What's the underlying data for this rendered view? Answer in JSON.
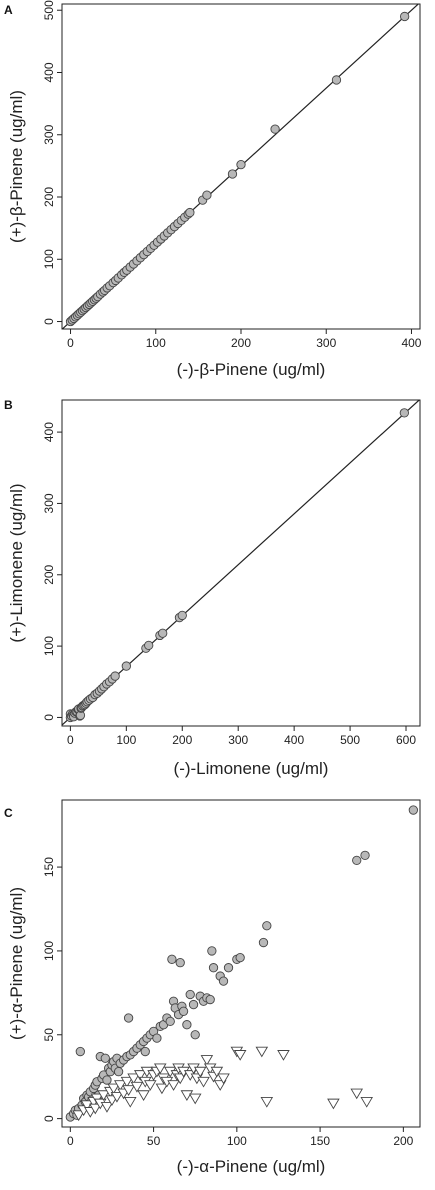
{
  "chart_data": [
    {
      "panel": "A",
      "type": "scatter",
      "xlabel": "(-)-β-Pinene (ug/ml)",
      "ylabel": "(+)-β-Pinene (ug/ml)",
      "xlim": [
        -10,
        410
      ],
      "ylim": [
        -12,
        510
      ],
      "xticks": [
        0,
        100,
        200,
        300,
        400
      ],
      "yticks": [
        0,
        100,
        200,
        300,
        400,
        500
      ],
      "reference_line": {
        "x": [
          -10,
          410
        ],
        "y": [
          -12.5,
          512.5
        ]
      },
      "series": [
        {
          "marker": "circle",
          "color": "#b8b8b8",
          "points": [
            [
              0,
              0
            ],
            [
              2,
              2.5
            ],
            [
              4,
              5
            ],
            [
              6,
              7.5
            ],
            [
              8,
              10
            ],
            [
              10,
              12.5
            ],
            [
              12,
              15
            ],
            [
              14,
              17.5
            ],
            [
              16,
              20
            ],
            [
              18,
              22.5
            ],
            [
              20,
              25
            ],
            [
              22,
              27.5
            ],
            [
              24,
              30
            ],
            [
              26,
              32.5
            ],
            [
              28,
              35
            ],
            [
              30,
              37.5
            ],
            [
              32,
              40
            ],
            [
              35,
              44
            ],
            [
              38,
              47.5
            ],
            [
              40,
              50
            ],
            [
              43,
              54
            ],
            [
              46,
              57.5
            ],
            [
              50,
              62.5
            ],
            [
              53,
              66
            ],
            [
              56,
              70
            ],
            [
              60,
              75
            ],
            [
              63,
              79
            ],
            [
              66,
              82.5
            ],
            [
              70,
              87.5
            ],
            [
              74,
              92.5
            ],
            [
              78,
              97.5
            ],
            [
              82,
              102.5
            ],
            [
              86,
              107.5
            ],
            [
              90,
              112.5
            ],
            [
              94,
              117.5
            ],
            [
              98,
              122.5
            ],
            [
              102,
              127.5
            ],
            [
              106,
              132.5
            ],
            [
              110,
              137.5
            ],
            [
              114,
              142.5
            ],
            [
              118,
              147.5
            ],
            [
              122,
              152.5
            ],
            [
              126,
              157.5
            ],
            [
              130,
              162.5
            ],
            [
              134,
              167.5
            ],
            [
              138,
              172.5
            ],
            [
              140,
              175
            ],
            [
              155,
              195
            ],
            [
              160,
              203
            ],
            [
              190,
              237
            ],
            [
              200,
              252
            ],
            [
              240,
              309
            ],
            [
              312,
              388
            ],
            [
              392,
              490
            ]
          ]
        }
      ]
    },
    {
      "panel": "B",
      "type": "scatter",
      "xlabel": "(-)-Limonene (ug/ml)",
      "ylabel": "(+)-Limonene (ug/ml)",
      "xlim": [
        -15,
        625
      ],
      "ylim": [
        -12,
        445
      ],
      "xticks": [
        0,
        100,
        200,
        300,
        400,
        500,
        600
      ],
      "yticks": [
        0,
        100,
        200,
        300,
        400
      ],
      "reference_line": {
        "x": [
          -15,
          625
        ],
        "y": [
          -10.7,
          446
        ]
      },
      "series": [
        {
          "marker": "circle",
          "color": "#b8b8b8",
          "points": [
            [
              0,
              0
            ],
            [
              0,
              5
            ],
            [
              2,
              2
            ],
            [
              4,
              5
            ],
            [
              5,
              3
            ],
            [
              6,
              1
            ],
            [
              8,
              6
            ],
            [
              10,
              8
            ],
            [
              12,
              8
            ],
            [
              14,
              11
            ],
            [
              15,
              12
            ],
            [
              17,
              2
            ],
            [
              18,
              3
            ],
            [
              19,
              13
            ],
            [
              20,
              14
            ],
            [
              22,
              16
            ],
            [
              24,
              17
            ],
            [
              26,
              18
            ],
            [
              28,
              20
            ],
            [
              30,
              22
            ],
            [
              33,
              24
            ],
            [
              36,
              26
            ],
            [
              40,
              28
            ],
            [
              44,
              32
            ],
            [
              48,
              34
            ],
            [
              52,
              37
            ],
            [
              56,
              40
            ],
            [
              60,
              43
            ],
            [
              65,
              47
            ],
            [
              70,
              50
            ],
            [
              75,
              54
            ],
            [
              80,
              58
            ],
            [
              100,
              72
            ],
            [
              135,
              97
            ],
            [
              140,
              101
            ],
            [
              160,
              115
            ],
            [
              165,
              118
            ],
            [
              195,
              140
            ],
            [
              200,
              143
            ],
            [
              597,
              427
            ]
          ]
        }
      ]
    },
    {
      "panel": "C",
      "type": "scatter",
      "xlabel": "(-)-α-Pinene (ug/ml)",
      "ylabel": "(+)-α-Pinene (ug/ml)",
      "xlim": [
        -5,
        210
      ],
      "ylim": [
        -5,
        190
      ],
      "xticks": [
        0,
        50,
        100,
        150,
        200
      ],
      "yticks": [
        0,
        50,
        100,
        150
      ],
      "series": [
        {
          "marker": "circle",
          "color": "#b8b8b8",
          "points": [
            [
              0,
              1
            ],
            [
              2,
              3
            ],
            [
              3,
              5
            ],
            [
              4,
              2
            ],
            [
              5,
              6
            ],
            [
              6,
              40
            ],
            [
              7,
              8
            ],
            [
              8,
              12
            ],
            [
              9,
              10
            ],
            [
              10,
              14
            ],
            [
              11,
              13
            ],
            [
              12,
              16
            ],
            [
              13,
              11
            ],
            [
              14,
              18
            ],
            [
              15,
              20
            ],
            [
              16,
              22
            ],
            [
              17,
              14
            ],
            [
              18,
              37
            ],
            [
              19,
              24
            ],
            [
              20,
              26
            ],
            [
              21,
              36
            ],
            [
              22,
              23
            ],
            [
              23,
              30
            ],
            [
              24,
              28
            ],
            [
              25,
              32
            ],
            [
              26,
              34
            ],
            [
              27,
              30
            ],
            [
              28,
              36
            ],
            [
              29,
              28
            ],
            [
              30,
              33
            ],
            [
              32,
              35
            ],
            [
              34,
              37
            ],
            [
              35,
              60
            ],
            [
              36,
              38
            ],
            [
              38,
              40
            ],
            [
              40,
              42
            ],
            [
              42,
              44
            ],
            [
              44,
              46
            ],
            [
              45,
              40
            ],
            [
              46,
              48
            ],
            [
              48,
              50
            ],
            [
              50,
              52
            ],
            [
              52,
              48
            ],
            [
              54,
              55
            ],
            [
              56,
              56
            ],
            [
              58,
              60
            ],
            [
              60,
              58
            ],
            [
              61,
              95
            ],
            [
              62,
              70
            ],
            [
              63,
              66
            ],
            [
              65,
              62
            ],
            [
              66,
              93
            ],
            [
              67,
              67
            ],
            [
              68,
              64
            ],
            [
              70,
              56
            ],
            [
              72,
              74
            ],
            [
              74,
              68
            ],
            [
              75,
              50
            ],
            [
              78,
              73
            ],
            [
              80,
              70
            ],
            [
              82,
              72
            ],
            [
              84,
              71
            ],
            [
              85,
              100
            ],
            [
              86,
              90
            ],
            [
              90,
              85
            ],
            [
              92,
              82
            ],
            [
              95,
              90
            ],
            [
              100,
              95
            ],
            [
              102,
              96
            ],
            [
              116,
              105
            ],
            [
              118,
              115
            ],
            [
              172,
              154
            ],
            [
              177,
              157
            ],
            [
              206,
              184
            ]
          ]
        },
        {
          "marker": "triangle-down",
          "color": "#ffffff",
          "points": [
            [
              5,
              2
            ],
            [
              8,
              5
            ],
            [
              10,
              8
            ],
            [
              12,
              4
            ],
            [
              14,
              10
            ],
            [
              15,
              6
            ],
            [
              16,
              12
            ],
            [
              18,
              9
            ],
            [
              20,
              14
            ],
            [
              22,
              7
            ],
            [
              24,
              16
            ],
            [
              25,
              11
            ],
            [
              26,
              18
            ],
            [
              28,
              13
            ],
            [
              30,
              20
            ],
            [
              32,
              15
            ],
            [
              34,
              22
            ],
            [
              35,
              17
            ],
            [
              36,
              10
            ],
            [
              38,
              24
            ],
            [
              40,
              19
            ],
            [
              42,
              26
            ],
            [
              44,
              14
            ],
            [
              45,
              22
            ],
            [
              46,
              28
            ],
            [
              48,
              20
            ],
            [
              50,
              26
            ],
            [
              52,
              28
            ],
            [
              54,
              30
            ],
            [
              55,
              18
            ],
            [
              56,
              24
            ],
            [
              58,
              22
            ],
            [
              60,
              28
            ],
            [
              62,
              20
            ],
            [
              64,
              26
            ],
            [
              65,
              30
            ],
            [
              66,
              24
            ],
            [
              68,
              28
            ],
            [
              70,
              14
            ],
            [
              72,
              26
            ],
            [
              74,
              30
            ],
            [
              75,
              12
            ],
            [
              76,
              24
            ],
            [
              78,
              28
            ],
            [
              80,
              22
            ],
            [
              82,
              35
            ],
            [
              84,
              30
            ],
            [
              86,
              25
            ],
            [
              88,
              28
            ],
            [
              90,
              20
            ],
            [
              92,
              24
            ],
            [
              100,
              40
            ],
            [
              102,
              38
            ],
            [
              115,
              40
            ],
            [
              118,
              10
            ],
            [
              128,
              38
            ],
            [
              158,
              9
            ],
            [
              172,
              15
            ],
            [
              178,
              10
            ]
          ]
        }
      ]
    }
  ]
}
